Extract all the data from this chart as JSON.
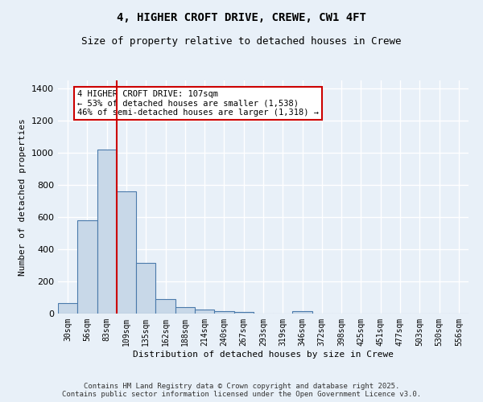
{
  "title": "4, HIGHER CROFT DRIVE, CREWE, CW1 4FT",
  "subtitle": "Size of property relative to detached houses in Crewe",
  "xlabel": "Distribution of detached houses by size in Crewe",
  "ylabel": "Number of detached properties",
  "bar_categories": [
    "30sqm",
    "56sqm",
    "83sqm",
    "109sqm",
    "135sqm",
    "162sqm",
    "188sqm",
    "214sqm",
    "240sqm",
    "267sqm",
    "293sqm",
    "319sqm",
    "346sqm",
    "372sqm",
    "398sqm",
    "425sqm",
    "451sqm",
    "477sqm",
    "503sqm",
    "530sqm",
    "556sqm"
  ],
  "bar_values": [
    65,
    580,
    1020,
    760,
    315,
    90,
    40,
    25,
    15,
    10,
    0,
    0,
    15,
    0,
    0,
    0,
    0,
    0,
    0,
    0,
    0
  ],
  "bar_color": "#c8d8e8",
  "bar_edge_color": "#4a7aab",
  "vline_color": "#cc0000",
  "annotation_text": "4 HIGHER CROFT DRIVE: 107sqm\n← 53% of detached houses are smaller (1,538)\n46% of semi-detached houses are larger (1,318) →",
  "annotation_box_color": "#ffffff",
  "annotation_box_edge": "#cc0000",
  "ylim": [
    0,
    1450
  ],
  "yticks": [
    0,
    200,
    400,
    600,
    800,
    1000,
    1200,
    1400
  ],
  "bg_color": "#e8f0f8",
  "grid_color": "#ffffff",
  "footer": "Contains HM Land Registry data © Crown copyright and database right 2025.\nContains public sector information licensed under the Open Government Licence v3.0."
}
